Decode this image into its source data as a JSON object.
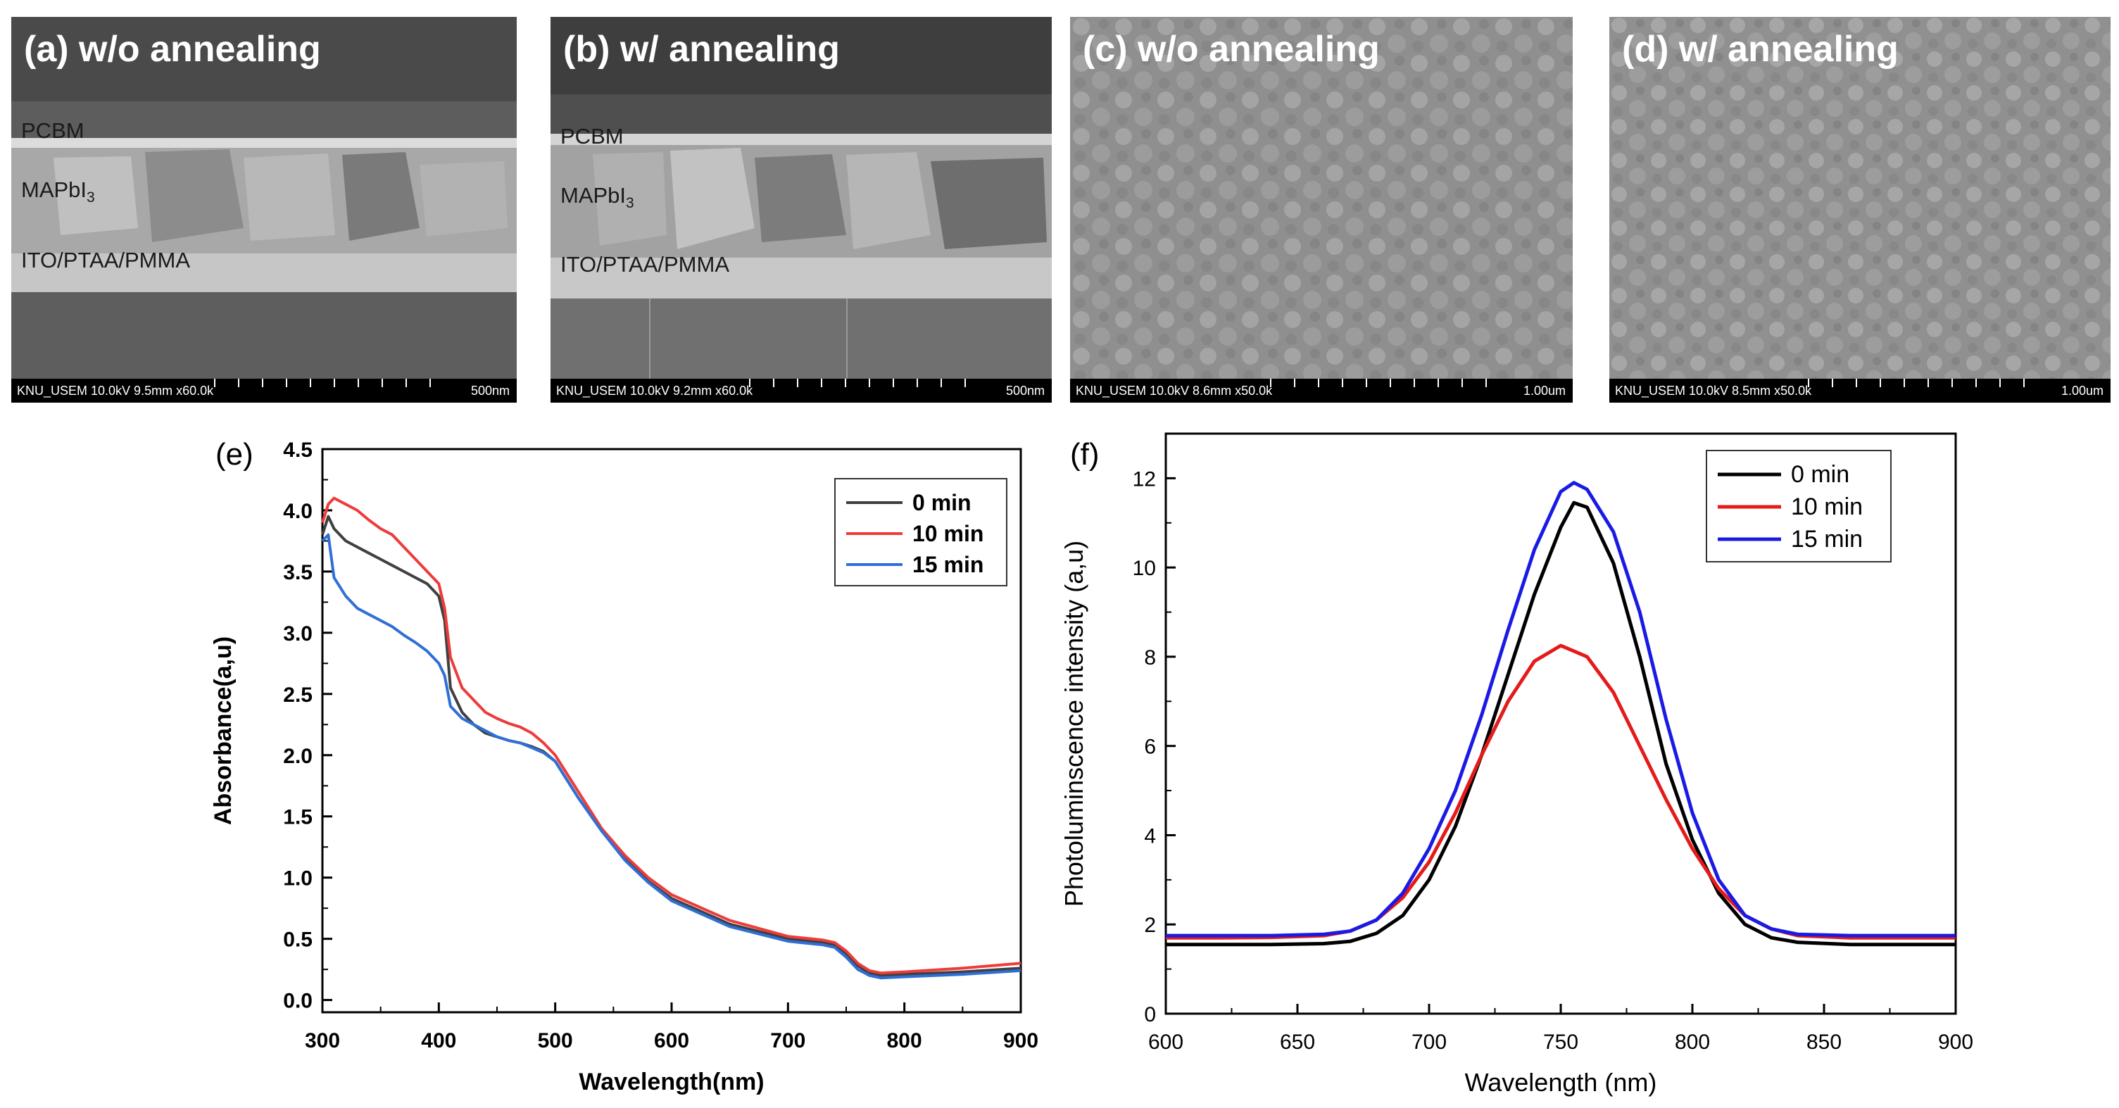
{
  "sem_panels": [
    {
      "title": "(a) w/o annealing",
      "info": "KNU_USEM 10.0kV 9.5mm x60.0k",
      "scale": "500nm",
      "layers": {
        "pcbm": "PCBM",
        "mapbi_base": "MAPbI",
        "mapbi_sub": "3",
        "ito": "ITO/PTAA/PMMA"
      }
    },
    {
      "title": "(b) w/ annealing",
      "info": "KNU_USEM 10.0kV 9.2mm x60.0k",
      "scale": "500nm",
      "layers": {
        "pcbm": "PCBM",
        "mapbi_base": "MAPbI",
        "mapbi_sub": "3",
        "ito": "ITO/PTAA/PMMA"
      }
    },
    {
      "title": "(c) w/o annealing",
      "info": "KNU_USEM 10.0kV 8.6mm x50.0k",
      "scale": "1.00um"
    },
    {
      "title": "(d) w/ annealing",
      "info": "KNU_USEM 10.0kV 8.5mm x50.0k",
      "scale": "1.00um"
    }
  ],
  "chart_data": [
    {
      "panel_label": "(e)",
      "type": "line",
      "xlabel": "Wavelength(nm)",
      "ylabel": "Absorbance(a,u)",
      "xlim": [
        300,
        900
      ],
      "ylim": [
        -0.1,
        4.5
      ],
      "xticks": [
        "300",
        "400",
        "500",
        "600",
        "700",
        "800",
        "900"
      ],
      "yticks": [
        "0.0",
        "0.5",
        "1.0",
        "1.5",
        "2.0",
        "2.5",
        "3.0",
        "3.5",
        "4.0",
        "4.5"
      ],
      "legend_position": "top-right",
      "series": [
        {
          "name": "0 min",
          "color": "#404040",
          "x": [
            300,
            305,
            310,
            320,
            330,
            340,
            350,
            360,
            370,
            380,
            390,
            400,
            405,
            410,
            420,
            430,
            440,
            450,
            460,
            470,
            480,
            490,
            500,
            520,
            540,
            560,
            580,
            600,
            650,
            700,
            730,
            740,
            750,
            760,
            770,
            780,
            800,
            850,
            900
          ],
          "y": [
            3.8,
            3.95,
            3.85,
            3.75,
            3.7,
            3.65,
            3.6,
            3.55,
            3.5,
            3.45,
            3.4,
            3.3,
            3.1,
            2.55,
            2.35,
            2.25,
            2.18,
            2.15,
            2.12,
            2.1,
            2.07,
            2.03,
            1.95,
            1.65,
            1.38,
            1.15,
            0.97,
            0.83,
            0.62,
            0.5,
            0.47,
            0.45,
            0.38,
            0.28,
            0.22,
            0.2,
            0.21,
            0.23,
            0.26
          ]
        },
        {
          "name": "10 min",
          "color": "#ee3b3b",
          "x": [
            300,
            305,
            310,
            320,
            330,
            340,
            350,
            360,
            370,
            380,
            390,
            400,
            405,
            410,
            420,
            430,
            440,
            450,
            460,
            470,
            480,
            490,
            500,
            520,
            540,
            560,
            580,
            600,
            650,
            700,
            730,
            740,
            750,
            760,
            770,
            780,
            800,
            850,
            900
          ],
          "y": [
            3.9,
            4.05,
            4.1,
            4.05,
            4.0,
            3.92,
            3.85,
            3.8,
            3.7,
            3.6,
            3.5,
            3.4,
            3.2,
            2.8,
            2.55,
            2.45,
            2.35,
            2.3,
            2.26,
            2.23,
            2.18,
            2.1,
            2.0,
            1.7,
            1.4,
            1.18,
            1.0,
            0.86,
            0.65,
            0.52,
            0.49,
            0.47,
            0.4,
            0.3,
            0.24,
            0.22,
            0.23,
            0.26,
            0.3
          ]
        },
        {
          "name": "15 min",
          "color": "#2f6fd6",
          "x": [
            300,
            305,
            310,
            320,
            330,
            340,
            350,
            360,
            370,
            380,
            390,
            400,
            405,
            410,
            420,
            430,
            440,
            450,
            460,
            470,
            480,
            490,
            500,
            520,
            540,
            560,
            580,
            600,
            650,
            700,
            730,
            740,
            750,
            760,
            770,
            780,
            800,
            850,
            900
          ],
          "y": [
            3.75,
            3.8,
            3.45,
            3.3,
            3.2,
            3.15,
            3.1,
            3.05,
            2.98,
            2.92,
            2.85,
            2.75,
            2.65,
            2.4,
            2.3,
            2.25,
            2.2,
            2.15,
            2.12,
            2.1,
            2.06,
            2.02,
            1.95,
            1.65,
            1.38,
            1.14,
            0.96,
            0.81,
            0.6,
            0.48,
            0.45,
            0.43,
            0.35,
            0.25,
            0.2,
            0.18,
            0.19,
            0.21,
            0.24
          ]
        }
      ]
    },
    {
      "panel_label": "(f)",
      "type": "line",
      "xlabel": "Wavelength (nm)",
      "ylabel": "Photoluminscence intensity (a,u)",
      "xlim": [
        600,
        900
      ],
      "ylim": [
        0,
        13
      ],
      "xticks": [
        "600",
        "650",
        "700",
        "750",
        "800",
        "850",
        "900"
      ],
      "yticks": [
        "0",
        "2",
        "4",
        "6",
        "8",
        "10",
        "12"
      ],
      "legend_position": "top-right",
      "series": [
        {
          "name": "0 min",
          "color": "#000000",
          "x": [
            600,
            620,
            640,
            660,
            670,
            680,
            690,
            700,
            710,
            720,
            730,
            740,
            750,
            755,
            760,
            770,
            780,
            790,
            800,
            810,
            820,
            830,
            840,
            860,
            880,
            900
          ],
          "y": [
            1.55,
            1.55,
            1.55,
            1.57,
            1.62,
            1.8,
            2.2,
            3.0,
            4.2,
            5.8,
            7.6,
            9.4,
            10.9,
            11.45,
            11.35,
            10.1,
            8.0,
            5.6,
            3.9,
            2.7,
            2.0,
            1.7,
            1.6,
            1.55,
            1.55,
            1.55
          ]
        },
        {
          "name": "10 min",
          "color": "#e51a1a",
          "x": [
            600,
            620,
            640,
            660,
            670,
            680,
            690,
            700,
            710,
            720,
            730,
            740,
            750,
            760,
            770,
            780,
            790,
            800,
            810,
            820,
            830,
            840,
            860,
            880,
            900
          ],
          "y": [
            1.7,
            1.7,
            1.71,
            1.75,
            1.85,
            2.1,
            2.6,
            3.4,
            4.5,
            5.8,
            7.0,
            7.9,
            8.25,
            8.0,
            7.2,
            6.0,
            4.8,
            3.7,
            2.8,
            2.2,
            1.9,
            1.75,
            1.7,
            1.7,
            1.7
          ]
        },
        {
          "name": "15 min",
          "color": "#1a1ae5",
          "x": [
            600,
            620,
            640,
            660,
            670,
            680,
            690,
            700,
            710,
            720,
            730,
            740,
            750,
            755,
            760,
            770,
            780,
            790,
            800,
            810,
            820,
            830,
            840,
            860,
            880,
            900
          ],
          "y": [
            1.75,
            1.75,
            1.75,
            1.78,
            1.85,
            2.1,
            2.7,
            3.7,
            5.0,
            6.7,
            8.6,
            10.4,
            11.7,
            11.9,
            11.75,
            10.8,
            9.0,
            6.6,
            4.5,
            3.0,
            2.2,
            1.9,
            1.78,
            1.75,
            1.75,
            1.75
          ]
        }
      ]
    }
  ]
}
